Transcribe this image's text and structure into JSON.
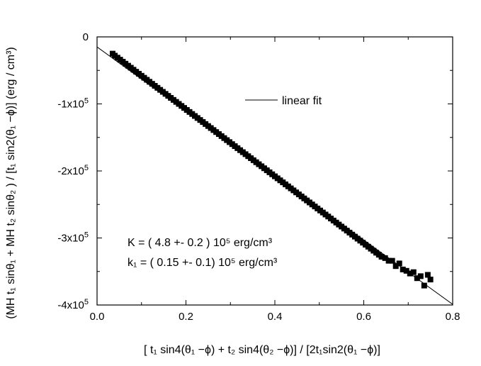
{
  "chart_data": {
    "type": "scatter",
    "title": "",
    "xlabel": "[ t₁ sin4(θ₁ −ϕ) + t₂ sin4(θ₂ −ϕ)] / [2t₁sin2(θ₁ −ϕ)]",
    "ylabel": "(MH t₁ sinθ₁ + MH t₂ sinθ₂ ) / [t₁ sin2(θ₁ −ϕ)]     (erg / cm³)",
    "xlim": [
      0.0,
      0.8
    ],
    "ylim": [
      -400000,
      0
    ],
    "x_ticks": [
      "0.0",
      "0.2",
      "0.4",
      "0.6",
      "0.8"
    ],
    "y_ticks": [
      "0",
      "-1x10",
      "-2x10",
      "-3x10",
      "-4x10"
    ],
    "y_tick_exponent": "5",
    "grid": false,
    "legend": {
      "placement": "top-right",
      "entry": "linear fit"
    },
    "annotations": [
      "K = ( 4.8 +- 0.2 ) 10⁵  erg/cm³",
      "k₁ = ( 0.15 +- 0.1) 10⁵  erg/cm³"
    ],
    "series": [
      {
        "name": "",
        "style": "markers",
        "marker": "square",
        "color": "#000000",
        "x": [
          0.035,
          0.04,
          0.046,
          0.052,
          0.058,
          0.064,
          0.07,
          0.076,
          0.082,
          0.088,
          0.094,
          0.1,
          0.106,
          0.112,
          0.118,
          0.124,
          0.13,
          0.136,
          0.142,
          0.148,
          0.154,
          0.16,
          0.166,
          0.172,
          0.178,
          0.184,
          0.19,
          0.196,
          0.202,
          0.208,
          0.214,
          0.22,
          0.226,
          0.232,
          0.238,
          0.244,
          0.25,
          0.256,
          0.262,
          0.268,
          0.274,
          0.28,
          0.286,
          0.292,
          0.298,
          0.304,
          0.31,
          0.316,
          0.322,
          0.328,
          0.334,
          0.34,
          0.346,
          0.352,
          0.358,
          0.364,
          0.37,
          0.376,
          0.382,
          0.388,
          0.394,
          0.4,
          0.406,
          0.412,
          0.418,
          0.424,
          0.43,
          0.436,
          0.442,
          0.448,
          0.454,
          0.46,
          0.466,
          0.472,
          0.478,
          0.484,
          0.49,
          0.496,
          0.502,
          0.508,
          0.514,
          0.52,
          0.526,
          0.532,
          0.538,
          0.544,
          0.55,
          0.556,
          0.562,
          0.568,
          0.574,
          0.58,
          0.586,
          0.592,
          0.598,
          0.604,
          0.61,
          0.616,
          0.622,
          0.628,
          0.634,
          0.64,
          0.648,
          0.656,
          0.664,
          0.672,
          0.68,
          0.688,
          0.696,
          0.704,
          0.712,
          0.72,
          0.728,
          0.736,
          0.744,
          0.75
        ],
        "y": [
          -25000,
          -28000,
          -31000,
          -34000,
          -37000,
          -40000,
          -43000,
          -46000,
          -49000,
          -52000,
          -55000,
          -58000,
          -61000,
          -64000,
          -67000,
          -70000,
          -73000,
          -76000,
          -79000,
          -82000,
          -85000,
          -88000,
          -91000,
          -94000,
          -97000,
          -100000,
          -103000,
          -106000,
          -109000,
          -112000,
          -115000,
          -118000,
          -121000,
          -124000,
          -127000,
          -130000,
          -133000,
          -136000,
          -139000,
          -142000,
          -145000,
          -148000,
          -151000,
          -154000,
          -157000,
          -160000,
          -163000,
          -166000,
          -169000,
          -172000,
          -175000,
          -178000,
          -181000,
          -184000,
          -187000,
          -190000,
          -193000,
          -196000,
          -199000,
          -202000,
          -205000,
          -208000,
          -211000,
          -214000,
          -217000,
          -220000,
          -223000,
          -226000,
          -229000,
          -232000,
          -235000,
          -238000,
          -241000,
          -244000,
          -247000,
          -250000,
          -253000,
          -256000,
          -259000,
          -262000,
          -265000,
          -268000,
          -271000,
          -274000,
          -277000,
          -280000,
          -283000,
          -286000,
          -289000,
          -292000,
          -295000,
          -298000,
          -301000,
          -304000,
          -307000,
          -310000,
          -313000,
          -316000,
          -319000,
          -322000,
          -325000,
          -328000,
          -330000,
          -334000,
          -334000,
          -342000,
          -338000,
          -347000,
          -349000,
          -353000,
          -351000,
          -360000,
          -357000,
          -371000,
          -355000,
          -362000
        ]
      },
      {
        "name": "linear fit",
        "style": "line",
        "color": "#000000",
        "x": [
          0.0,
          0.8
        ],
        "y": [
          -15000,
          -399000
        ]
      }
    ]
  }
}
